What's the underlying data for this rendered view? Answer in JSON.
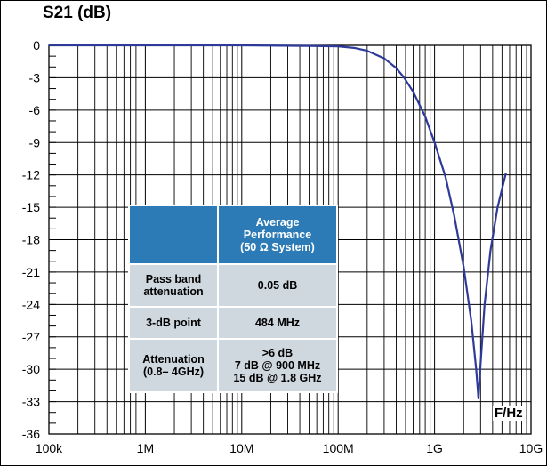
{
  "chart_data": {
    "type": "line",
    "title": "",
    "ylabel": "S21 (dB)",
    "xlabel": "F/Hz",
    "xscale": "log",
    "xlim": [
      100000,
      10000000000
    ],
    "ylim": [
      -36,
      0
    ],
    "grid": true,
    "x_tick_labels": [
      "100k",
      "1M",
      "10M",
      "100M",
      "1G",
      "10G"
    ],
    "x_tick_values": [
      100000,
      1000000,
      10000000,
      100000000,
      1000000000,
      10000000000
    ],
    "y_tick_labels": [
      "0",
      "-3",
      "-6",
      "-9",
      "-12",
      "-15",
      "-18",
      "-21",
      "-24",
      "-27",
      "-30",
      "-33",
      "-36"
    ],
    "y_tick_values": [
      0,
      -3,
      -6,
      -9,
      -12,
      -15,
      -18,
      -21,
      -24,
      -27,
      -30,
      -33,
      -36
    ],
    "series": [
      {
        "color": "#2e3a9a",
        "x": [
          100000,
          1000000,
          10000000,
          50000000,
          100000000,
          150000000,
          200000000,
          300000000,
          400000000,
          484000000,
          600000000,
          800000000,
          1000000000,
          1300000000,
          1600000000,
          2000000000,
          2400000000,
          2700000000,
          2850000000,
          3000000000,
          3300000000,
          3800000000,
          4500000000,
          5500000000
        ],
        "y": [
          0,
          0,
          0,
          -0.05,
          -0.1,
          -0.25,
          -0.5,
          -1.2,
          -2.1,
          -3.0,
          -4.3,
          -6.6,
          -9.0,
          -12.2,
          -15.8,
          -20.5,
          -25.5,
          -30,
          -32.7,
          -29.5,
          -24.0,
          -19.0,
          -15.0,
          -11.8
        ]
      }
    ]
  },
  "table": {
    "header": "Average Performance (50 Ω System)",
    "header_lines": [
      "Average",
      "Performance",
      "(50 Ω System)"
    ],
    "rows": [
      {
        "label_lines": [
          "Pass band",
          "attenuation"
        ],
        "value_lines": [
          "0.05 dB"
        ]
      },
      {
        "label_lines": [
          "3-dB point"
        ],
        "value_lines": [
          "484 MHz"
        ]
      },
      {
        "label_lines": [
          "Attenuation",
          "(0.8– 4GHz)"
        ],
        "value_lines": [
          ">6 dB",
          "7 dB @ 900 MHz",
          "15 dB @ 1.8 GHz"
        ]
      }
    ]
  }
}
